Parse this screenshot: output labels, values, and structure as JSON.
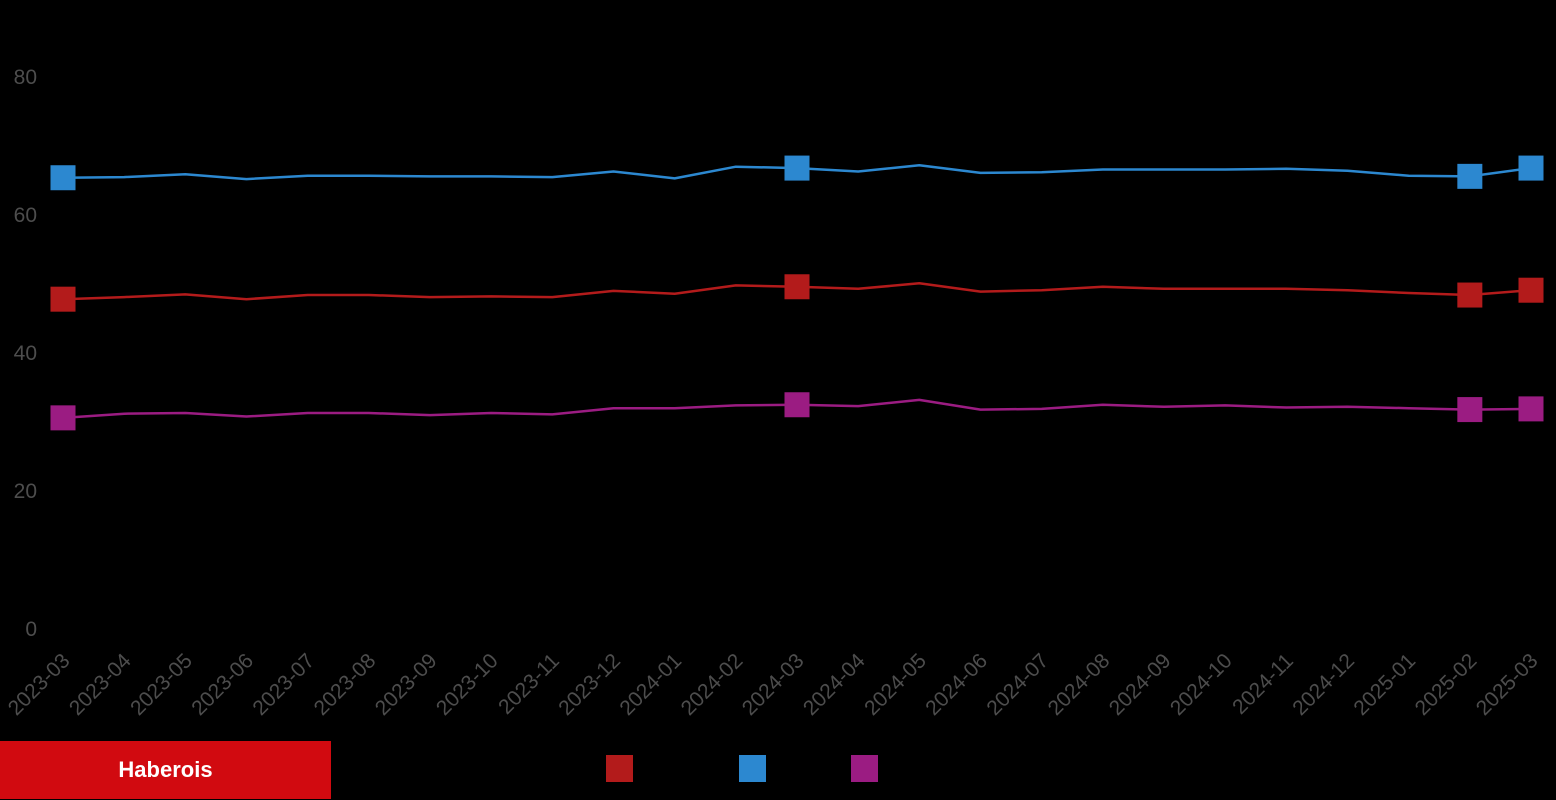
{
  "brand": {
    "name": "Haberois",
    "color": "#d10a10"
  },
  "chart_data": {
    "type": "line",
    "title": "",
    "xlabel": "",
    "ylabel": "",
    "ylim": [
      0,
      80
    ],
    "yticks": [
      0,
      20,
      40,
      60,
      80
    ],
    "grid": false,
    "legend": "bottom-center",
    "categories": [
      "2023-03",
      "2023-04",
      "2023-05",
      "2023-06",
      "2023-07",
      "2023-08",
      "2023-09",
      "2023-10",
      "2023-11",
      "2023-12",
      "2024-01",
      "2024-02",
      "2024-03",
      "2024-04",
      "2024-05",
      "2024-06",
      "2024-07",
      "2024-08",
      "2024-09",
      "2024-10",
      "2024-11",
      "2024-12",
      "2025-01",
      "2025-02",
      "2025-03"
    ],
    "marker_indices": [
      0,
      12,
      23,
      24
    ],
    "series": [
      {
        "color": "#b31b1b",
        "values": [
          47.8,
          48.1,
          48.5,
          47.8,
          48.4,
          48.4,
          48.1,
          48.2,
          48.1,
          49.0,
          48.6,
          49.8,
          49.6,
          49.3,
          50.1,
          48.9,
          49.1,
          49.6,
          49.3,
          49.3,
          49.3,
          49.1,
          48.7,
          48.4,
          49.1
        ]
      },
      {
        "color": "#2c88d0",
        "values": [
          65.4,
          65.5,
          65.9,
          65.2,
          65.7,
          65.7,
          65.6,
          65.6,
          65.5,
          66.3,
          65.3,
          67.0,
          66.8,
          66.3,
          67.2,
          66.1,
          66.2,
          66.6,
          66.6,
          66.6,
          66.7,
          66.4,
          65.7,
          65.6,
          66.8
        ]
      },
      {
        "color": "#9b1c82",
        "values": [
          30.6,
          31.2,
          31.3,
          30.8,
          31.3,
          31.3,
          31.0,
          31.3,
          31.1,
          32.0,
          32.0,
          32.4,
          32.5,
          32.3,
          33.2,
          31.8,
          31.9,
          32.5,
          32.2,
          32.4,
          32.1,
          32.2,
          32.0,
          31.8,
          31.9
        ]
      }
    ]
  }
}
